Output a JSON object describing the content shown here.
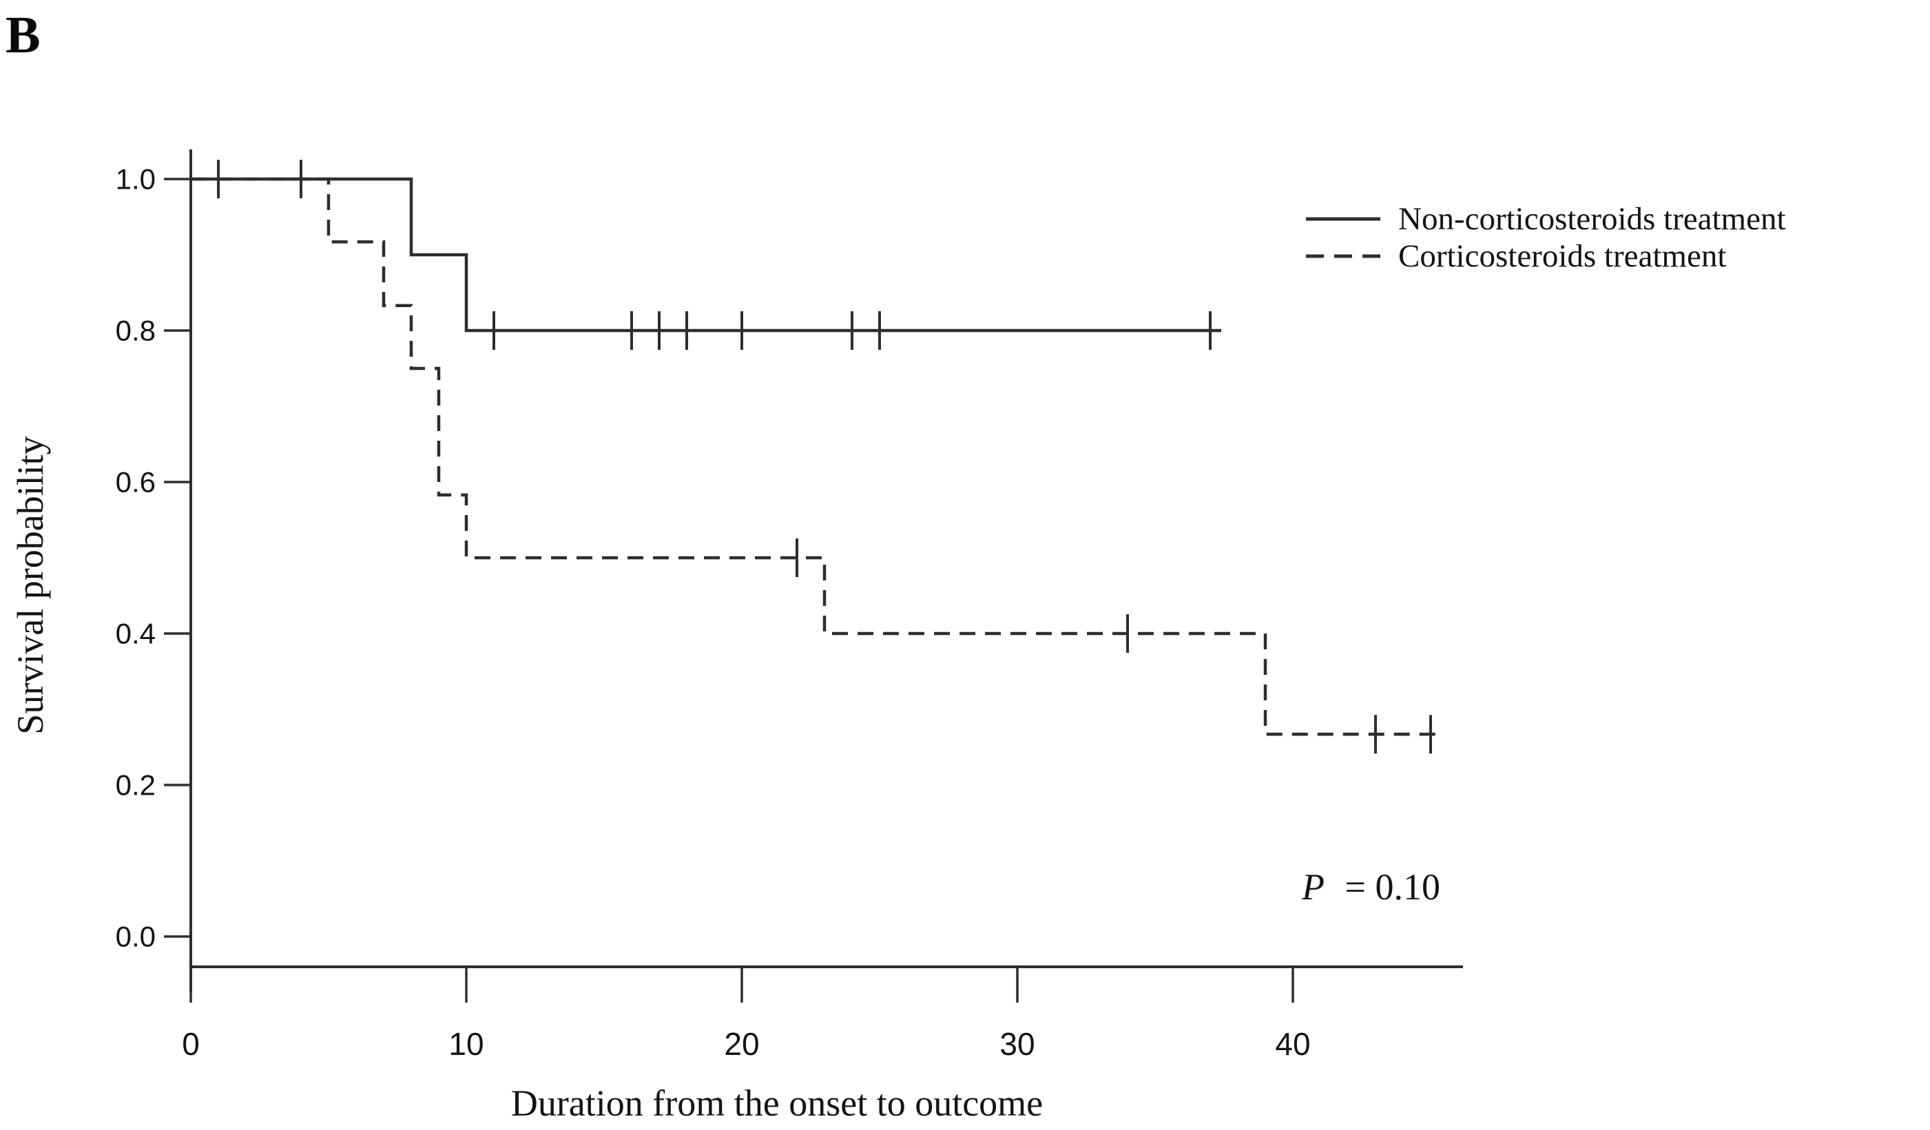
{
  "panel_label": "B",
  "figure": {
    "background": "#ffffff",
    "line_color": "#2e2e2e",
    "text_color": "#141414"
  },
  "chart_data": {
    "type": "line",
    "subtype": "kaplan-meier-step",
    "title": "",
    "xlabel": "Duration from the onset to outcome",
    "ylabel": "Survival probability",
    "xlim": [
      0,
      46.2
    ],
    "ylim": [
      0.0,
      1.0
    ],
    "grid": false,
    "legend_position": "top-right",
    "x_ticks": [
      0,
      10,
      20,
      30,
      40
    ],
    "x_tick_labels": [
      "0",
      "10",
      "20",
      "30",
      "40"
    ],
    "y_ticks": [
      0.0,
      0.2,
      0.4,
      0.6,
      0.8,
      1.0
    ],
    "y_tick_labels": [
      "0.0",
      "0.2",
      "0.4",
      "0.6",
      "0.8",
      "1.0"
    ],
    "series": [
      {
        "name": "Non-corticosteroids treatment",
        "style": "solid",
        "steps": [
          [
            0,
            1.0
          ],
          [
            8,
            1.0
          ],
          [
            8,
            0.9
          ],
          [
            10,
            0.9
          ],
          [
            10,
            0.8
          ],
          [
            37.4,
            0.8
          ]
        ],
        "censors": [
          [
            1,
            1.0
          ],
          [
            4,
            1.0
          ],
          [
            11,
            0.8
          ],
          [
            16,
            0.8
          ],
          [
            17,
            0.8
          ],
          [
            18,
            0.8
          ],
          [
            20,
            0.8
          ],
          [
            24,
            0.8
          ],
          [
            25,
            0.8
          ],
          [
            37,
            0.8
          ]
        ]
      },
      {
        "name": "Corticosteroids treatment",
        "style": "dashed",
        "steps": [
          [
            0,
            1.0
          ],
          [
            5,
            1.0
          ],
          [
            5,
            0.917
          ],
          [
            7,
            0.917
          ],
          [
            7,
            0.833
          ],
          [
            8,
            0.833
          ],
          [
            8,
            0.75
          ],
          [
            9,
            0.75
          ],
          [
            9,
            0.583
          ],
          [
            10,
            0.583
          ],
          [
            10,
            0.5
          ],
          [
            23,
            0.5
          ],
          [
            23,
            0.4
          ],
          [
            39,
            0.4
          ],
          [
            39,
            0.267
          ],
          [
            45.5,
            0.267
          ]
        ],
        "censors": [
          [
            22,
            0.5
          ],
          [
            34,
            0.4
          ],
          [
            43,
            0.267
          ],
          [
            45,
            0.267
          ]
        ]
      }
    ],
    "annotation": {
      "p_italic": "P",
      "p_rest": "= 0.10",
      "x": 43,
      "y": 0.07
    }
  }
}
